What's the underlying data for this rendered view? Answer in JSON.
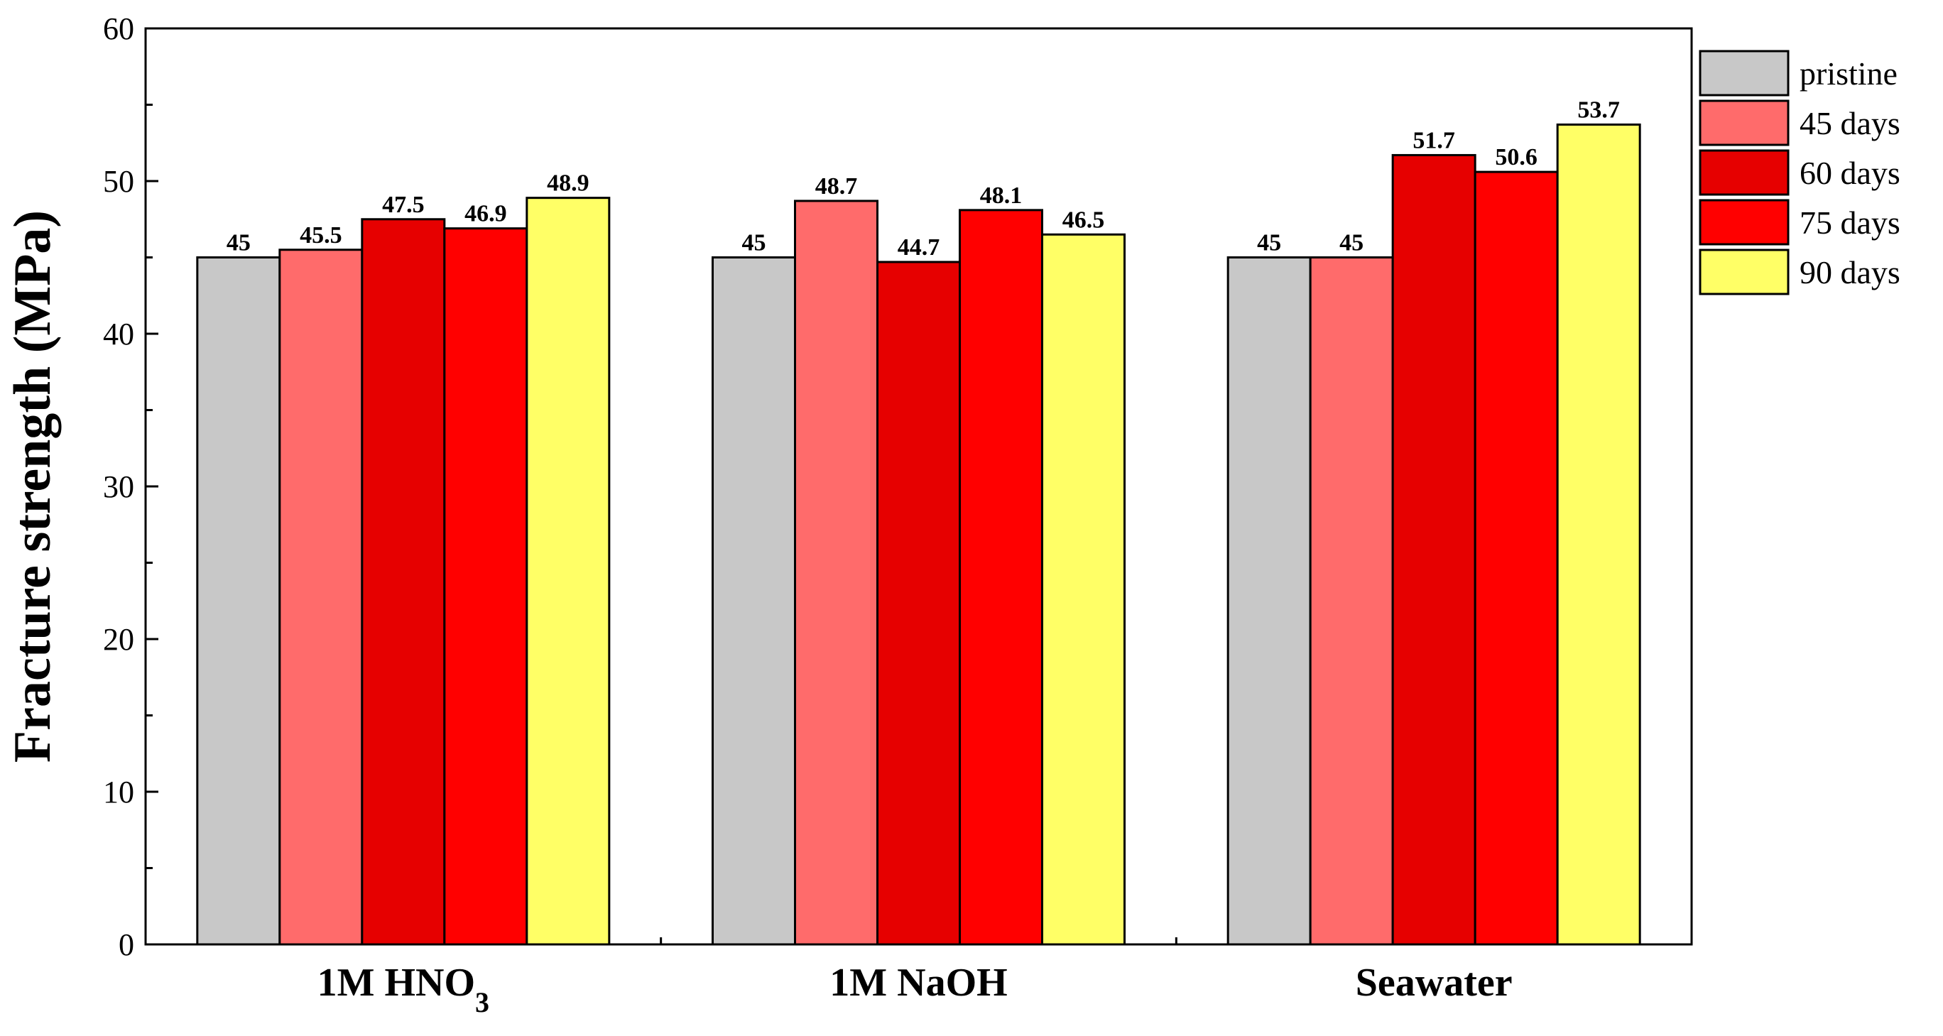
{
  "chart_data": {
    "type": "bar",
    "ylabel": "Fracture strength (MPa)",
    "xlabel": "",
    "ylim": [
      0,
      60
    ],
    "yticks": [
      0,
      10,
      20,
      30,
      40,
      50,
      60
    ],
    "categories": [
      {
        "label": "1M HNO",
        "subscript": "3"
      },
      {
        "label": "1M NaOH",
        "subscript": ""
      },
      {
        "label": "Seawater",
        "subscript": ""
      }
    ],
    "series": [
      {
        "name": "pristine",
        "color": "#c8c8c8",
        "values": [
          45,
          45,
          45
        ],
        "labels": [
          "45",
          "45",
          "45"
        ]
      },
      {
        "name": "45 days",
        "color": "#ff6b6b",
        "values": [
          45.5,
          48.7,
          45
        ],
        "labels": [
          "45.5",
          "48.7",
          "45"
        ]
      },
      {
        "name": "60 days",
        "color": "#e60000",
        "values": [
          47.5,
          44.7,
          51.7
        ],
        "labels": [
          "47.5",
          "44.7",
          "51.7"
        ]
      },
      {
        "name": "75 days",
        "color": "#ff0000",
        "values": [
          46.9,
          48.1,
          50.6
        ],
        "labels": [
          "46.9",
          "48.1",
          "50.6"
        ]
      },
      {
        "name": "90 days",
        "color": "#ffff66",
        "values": [
          48.9,
          46.5,
          53.7
        ],
        "labels": [
          "48.9",
          "46.5",
          "53.7"
        ]
      }
    ],
    "grid": false,
    "legend_position": "top-right"
  }
}
